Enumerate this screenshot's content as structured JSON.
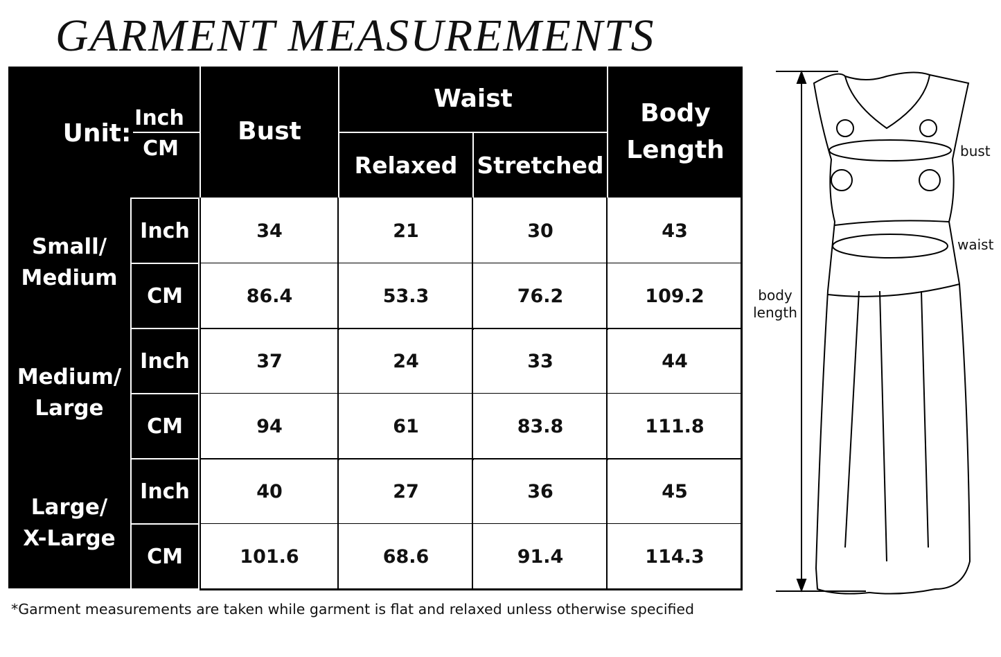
{
  "title": "GARMENT MEASUREMENTS",
  "header": {
    "unit_label": "Unit:",
    "unit_inch": "Inch",
    "unit_cm": "CM",
    "bust": "Bust",
    "waist": "Waist",
    "relaxed": "Relaxed",
    "stretched": "Stretched",
    "body_length": "Body Length"
  },
  "rows": [
    {
      "size": "Small/ Medium",
      "inch": {
        "unit": "Inch",
        "bust": "34",
        "relaxed": "21",
        "stretched": "30",
        "length": "43"
      },
      "cm": {
        "unit": "CM",
        "bust": "86.4",
        "relaxed": "53.3",
        "stretched": "76.2",
        "length": "109.2"
      }
    },
    {
      "size": "Medium/ Large",
      "inch": {
        "unit": "Inch",
        "bust": "37",
        "relaxed": "24",
        "stretched": "33",
        "length": "44"
      },
      "cm": {
        "unit": "CM",
        "bust": "94",
        "relaxed": "61",
        "stretched": "83.8",
        "length": "111.8"
      }
    },
    {
      "size": "Large/ X-Large",
      "inch": {
        "unit": "Inch",
        "bust": "40",
        "relaxed": "27",
        "stretched": "36",
        "length": "45"
      },
      "cm": {
        "unit": "CM",
        "bust": "101.6",
        "relaxed": "68.6",
        "stretched": "91.4",
        "length": "114.3"
      }
    }
  ],
  "footnote": "*Garment measurements are taken while garment is flat and relaxed unless otherwise specified",
  "diagram": {
    "bust": "bust",
    "waist": "waist",
    "body_length": "body length"
  }
}
